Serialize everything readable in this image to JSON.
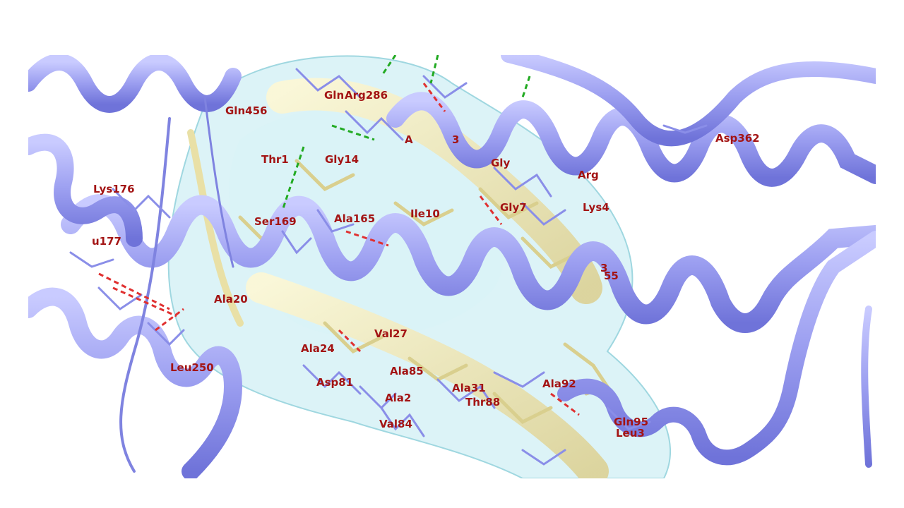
{
  "residue_labels": [
    "Gln456",
    "Gln",
    "Arg286",
    "Thr1",
    "Gly14",
    "A",
    "3",
    "Gly",
    "Arg",
    "Asp362",
    "Lys176",
    "Ser169",
    "Ala165",
    "Ile10",
    "Gly7",
    "Lys4",
    "u177",
    "3",
    "55",
    "Ala20",
    "Val27",
    "Ala24",
    "Ala85",
    "Leu250",
    "Asp81",
    "Ala31",
    "Ala92",
    "Ala2",
    "Thr88",
    "Gln95",
    "Val84",
    "Leu3"
  ],
  "colors": {
    "ribbon": "#9b9ef0",
    "ribbon_dark": "#6f73d9",
    "ligand": "#efe7b0",
    "surface": "#bfeaf0",
    "label": "#a31414",
    "hbond_red": "#e03030",
    "hbond_green": "#22aa22"
  }
}
